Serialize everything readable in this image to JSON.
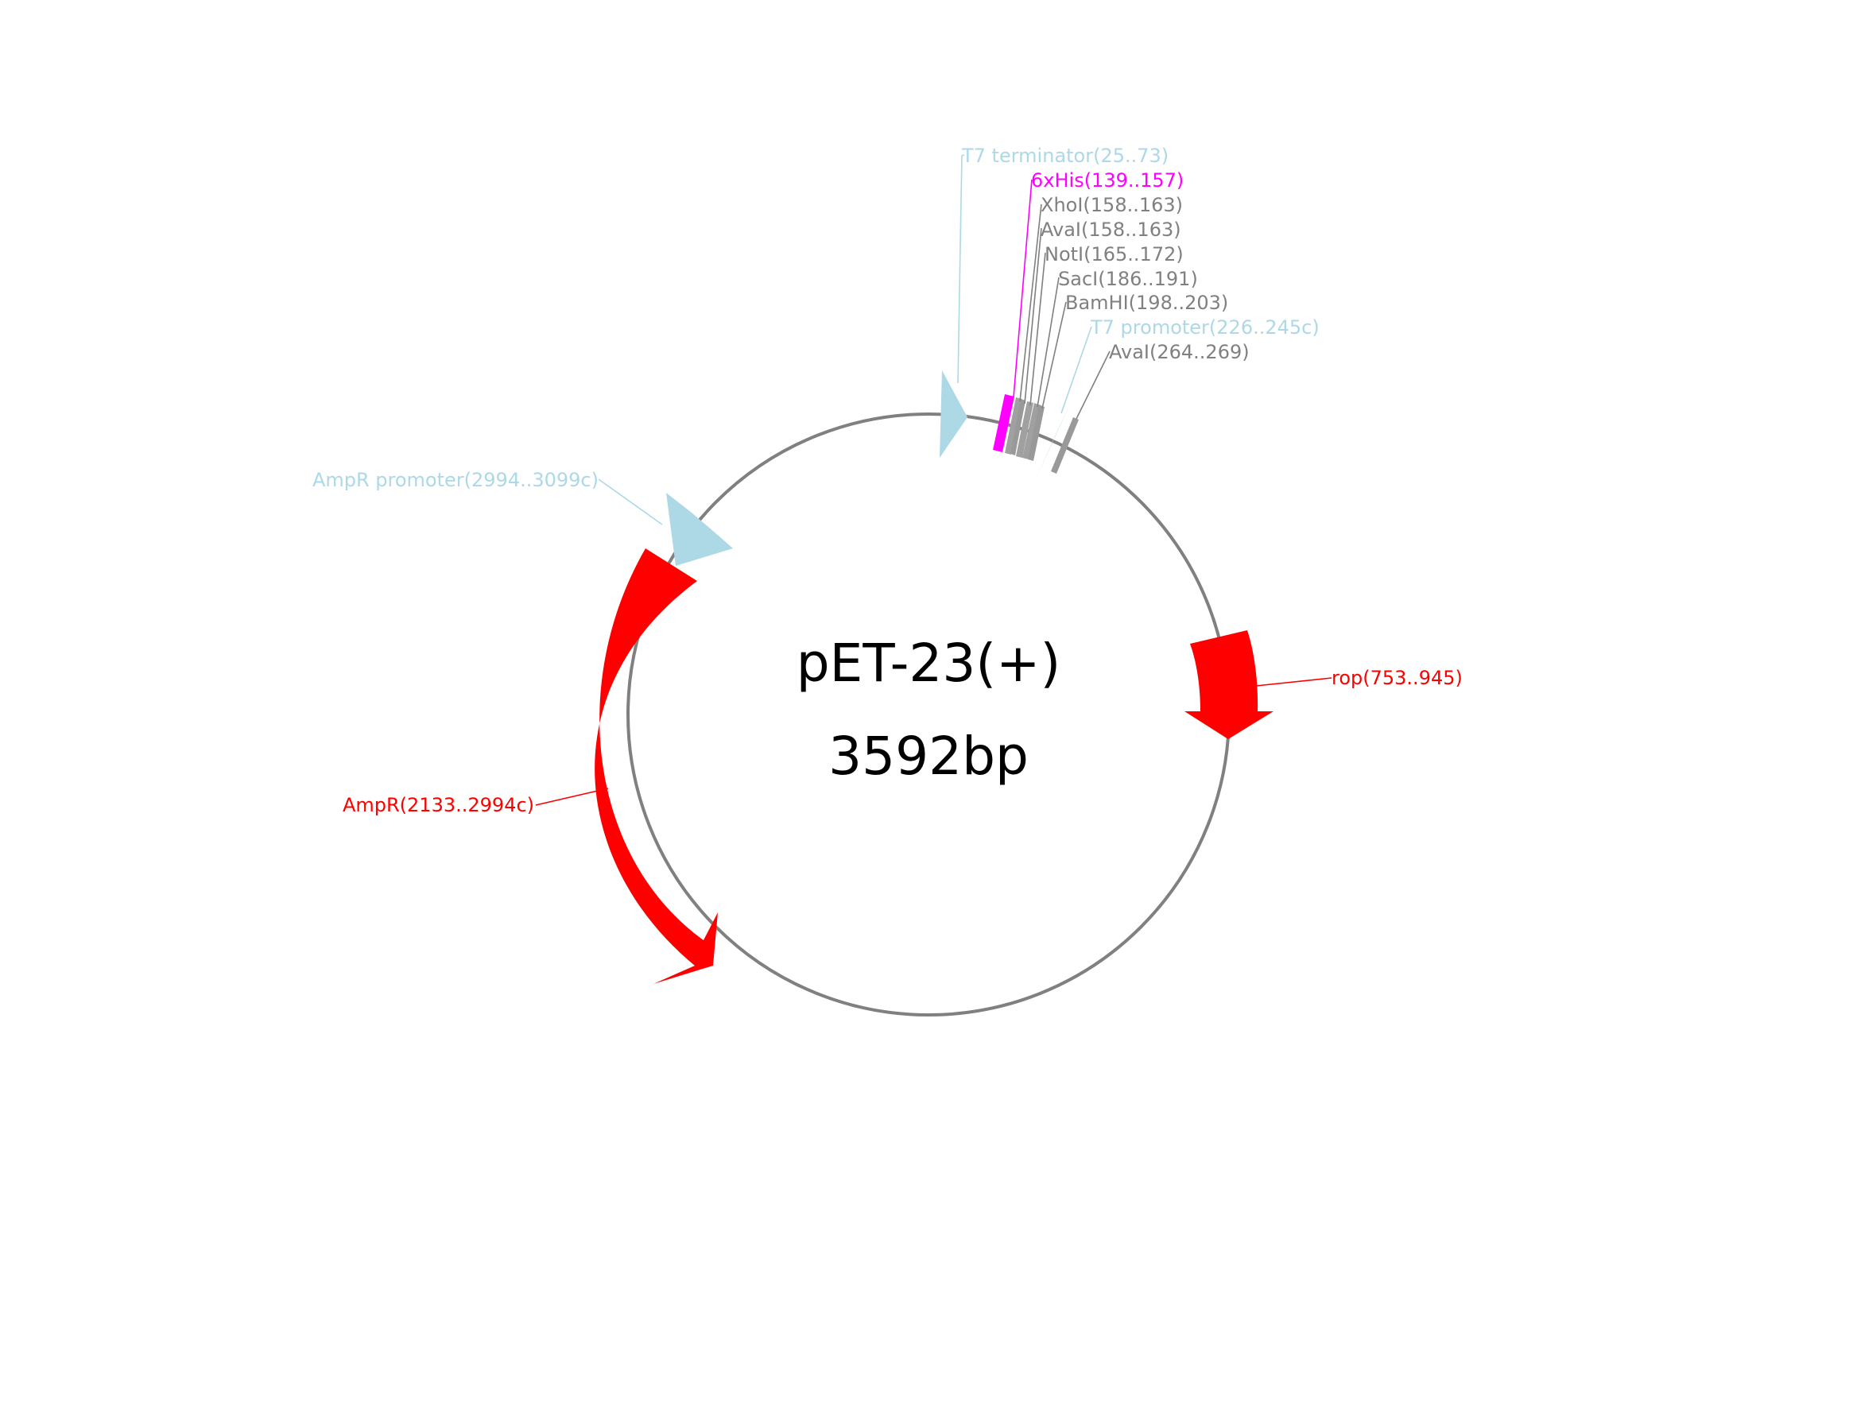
{
  "plasmid": {
    "name": "pET-23(+)",
    "size_label": "3592bp",
    "length_bp": 3592
  },
  "colors": {
    "backbone": "#808080",
    "cds": "#ff0000",
    "regulatory": "#add8e6",
    "tag": "#ff00ff",
    "restriction_site": "#808080"
  },
  "features": [
    {
      "id": "t7-terminator",
      "label": "T7 terminator(25..73)",
      "type": "terminator",
      "color": "#add8e6"
    },
    {
      "id": "his-tag",
      "label": "6xHis(139..157)",
      "type": "tag",
      "color": "#ff00ff"
    },
    {
      "id": "xhoi",
      "label": "XhoI(158..163)",
      "type": "site",
      "color": "#808080"
    },
    {
      "id": "avai-1",
      "label": "AvaI(158..163)",
      "type": "site",
      "color": "#808080"
    },
    {
      "id": "noti",
      "label": "NotI(165..172)",
      "type": "site",
      "color": "#808080"
    },
    {
      "id": "saci",
      "label": "SacI(186..191)",
      "type": "site",
      "color": "#808080"
    },
    {
      "id": "bamhi",
      "label": "BamHI(198..203)",
      "type": "site",
      "color": "#808080"
    },
    {
      "id": "t7-promoter",
      "label": "T7 promoter(226..245c)",
      "type": "promoter",
      "color": "#add8e6"
    },
    {
      "id": "avai-2",
      "label": "AvaI(264..269)",
      "type": "site",
      "color": "#808080"
    },
    {
      "id": "ampr-promoter",
      "label": "AmpR promoter(2994..3099c)",
      "type": "promoter",
      "color": "#add8e6"
    },
    {
      "id": "rop",
      "label": "rop(753..945)",
      "type": "cds",
      "color": "#ff0000"
    },
    {
      "id": "ampr",
      "label": "AmpR(2133..2994c)",
      "type": "cds",
      "color": "#ff0000"
    }
  ]
}
